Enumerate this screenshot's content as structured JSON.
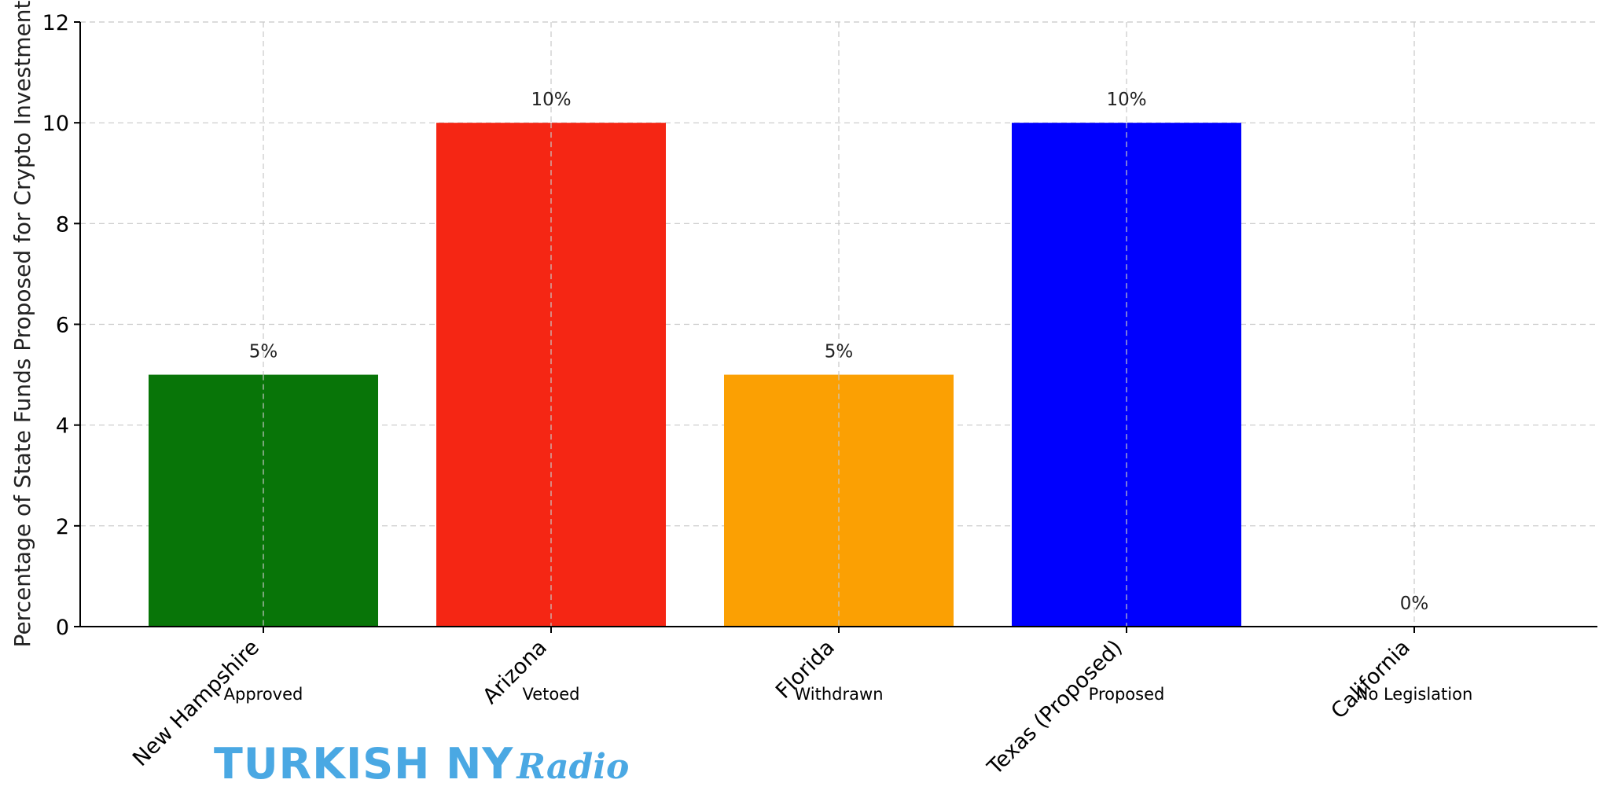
{
  "chart_data": {
    "type": "bar",
    "categories": [
      "New Hampshire",
      "Arizona",
      "Florida",
      "Texas (Proposed)",
      "California"
    ],
    "values": [
      5,
      10,
      5,
      10,
      0
    ],
    "value_labels": [
      "5%",
      "10%",
      "5%",
      "10%",
      "0%"
    ],
    "status_labels": [
      "Approved",
      "Vetoed",
      "Withdrawn",
      "Proposed",
      "No Legislation"
    ],
    "colors": [
      "#087508",
      "#f52614",
      "#fba003",
      "#0000fe",
      "#ffffff"
    ],
    "title": "",
    "xlabel": "",
    "ylabel": "Percentage of State Funds Proposed for Crypto Investment",
    "ylim": [
      0,
      12
    ],
    "yticks": [
      0,
      2,
      4,
      6,
      8,
      10,
      12
    ],
    "grid": true
  },
  "watermark": {
    "main": "TURKISH NY",
    "script": "Radio"
  }
}
